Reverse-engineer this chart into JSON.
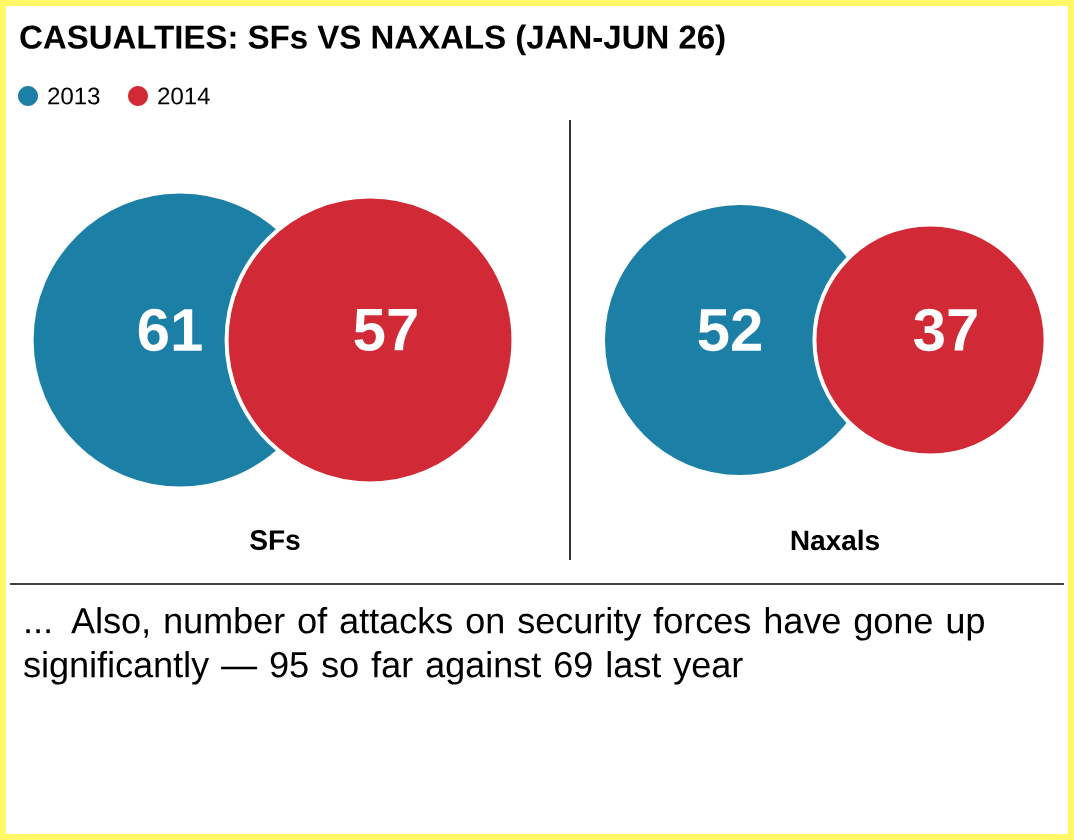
{
  "chart_data": {
    "type": "other",
    "title": "CASUALTIES: SFs VS NAXALS (JAN-JUN 26)",
    "categories": [
      "SFs",
      "Naxals"
    ],
    "series": [
      {
        "name": "2013",
        "color": "#1b7fa6",
        "values": [
          61,
          52
        ]
      },
      {
        "name": "2014",
        "color": "#d12a36",
        "values": [
          57,
          37
        ]
      }
    ],
    "data_labels": true,
    "legend": "top left",
    "annotations": [
      "... Also, number of attacks on security forces have gone up significantly — 95 so far against 69 last year"
    ]
  }
}
